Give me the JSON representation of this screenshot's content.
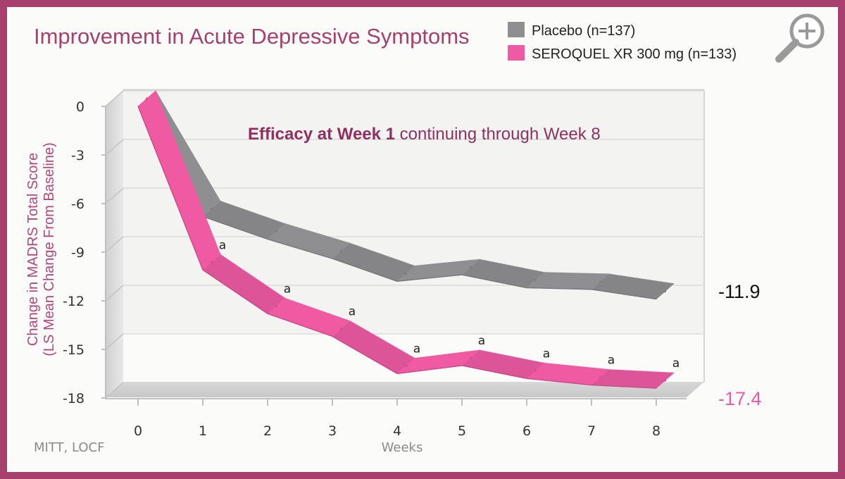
{
  "chart_data": {
    "type": "line",
    "title": "Improvement in Acute Depressive Symptoms",
    "subtitle_bold": "Efficacy at Week 1",
    "subtitle_rest": " continuing through Week 8",
    "xlabel": "Weeks",
    "ylabel_line1": "Change in MADRS Total Score",
    "ylabel_line2": "(LS Mean Change From Baseline)",
    "x": [
      0,
      1,
      2,
      3,
      4,
      5,
      6,
      7,
      8
    ],
    "x_tick_labels": [
      "0",
      "1",
      "2",
      "3",
      "4",
      "5",
      "6",
      "7",
      "8"
    ],
    "y_tick_values": [
      0,
      -3,
      -6,
      -9,
      -12,
      -15,
      -18
    ],
    "y_tick_labels": [
      "0",
      "-3",
      "-6",
      "-9",
      "-12",
      "-15",
      "-18"
    ],
    "ylim": [
      -18,
      0
    ],
    "grid": true,
    "legend_position": "top-right",
    "series": [
      {
        "name": "Placebo (n=137)",
        "color": "#8f8f91",
        "values": [
          0,
          -6.8,
          -8.2,
          -9.4,
          -10.8,
          -10.4,
          -11.2,
          -11.3,
          -11.9
        ],
        "end_label": "-11.9",
        "end_label_color": "#111111"
      },
      {
        "name": "SEROQUEL XR 300 mg (n=133)",
        "color": "#ef5aa3",
        "values": [
          0,
          -10.1,
          -12.8,
          -14.2,
          -16.5,
          -16.0,
          -16.8,
          -17.2,
          -17.4
        ],
        "end_label": "-17.4",
        "end_label_color": "#ef5aa3",
        "significance_marker": "a",
        "significance_weeks": [
          1,
          2,
          3,
          4,
          5,
          6,
          7,
          8
        ]
      }
    ],
    "footnote": "MITT, LOCF",
    "colors": {
      "brand": "#a5416c",
      "axis_label": "#b0487a",
      "grid": "#dcdcdc"
    }
  },
  "toolbar": {
    "zoom_icon": "zoom-in-magnifier-icon"
  }
}
